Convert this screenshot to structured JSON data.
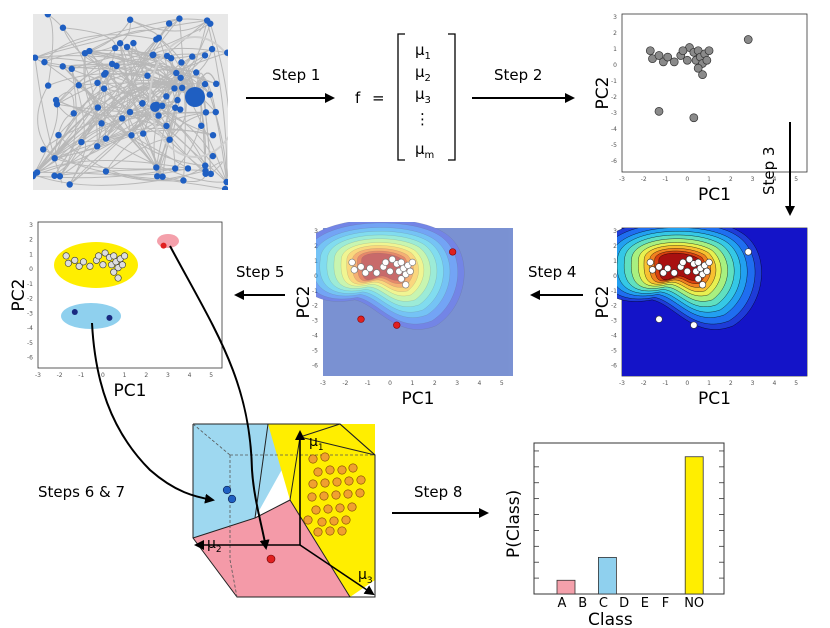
{
  "steps": {
    "step1": "Step 1",
    "step2": "Step 2",
    "step3": "Step 3",
    "step4": "Step 4",
    "step5": "Step 5",
    "step67": "Steps 6 & 7",
    "step8": "Step 8"
  },
  "feature_vector": {
    "lhs": "f",
    "eq": "=",
    "entries": [
      "μ",
      "μ",
      "μ",
      "⋮",
      "μ"
    ],
    "subscripts": [
      "1",
      "2",
      "3",
      "",
      "m"
    ]
  },
  "pca_axes": {
    "xlabel": "PC1",
    "ylabel": "PC2",
    "xticks": [
      "-3",
      "-2",
      "-1",
      "0",
      "1",
      "2",
      "3",
      "4",
      "5"
    ],
    "yticks": [
      "3",
      "2",
      "1",
      "0",
      "-1",
      "-2",
      "-3",
      "-4",
      "-5",
      "-6"
    ]
  },
  "cube_axes": {
    "mu1": "μ",
    "mu1_sub": "1",
    "mu2": "μ",
    "mu2_sub": "2",
    "mu3": "μ",
    "mu3_sub": "3"
  },
  "colors": {
    "network_node": "#1f5fc2",
    "network_edge": "#b8b8b8",
    "pca_point": "#8a8a8a",
    "class_a": "#f4a0ab",
    "class_c": "#8fd0ee",
    "class_no": "#ffee00",
    "orange_point": "#f0a030",
    "red_point": "#e02020",
    "blue_point": "#1f5fc2"
  },
  "chart_data": {
    "type": "bar",
    "xlabel": "Class",
    "ylabel": "P(Class)",
    "categories": [
      "A",
      "B",
      "C",
      "D",
      "E",
      "F",
      "NO"
    ],
    "values": [
      0.09,
      0,
      0.24,
      0,
      0,
      0,
      0.9
    ],
    "colors": [
      "#f4a0ab",
      null,
      "#8fd0ee",
      null,
      null,
      null,
      "#ffee00"
    ],
    "ylim": [
      0,
      1
    ]
  }
}
